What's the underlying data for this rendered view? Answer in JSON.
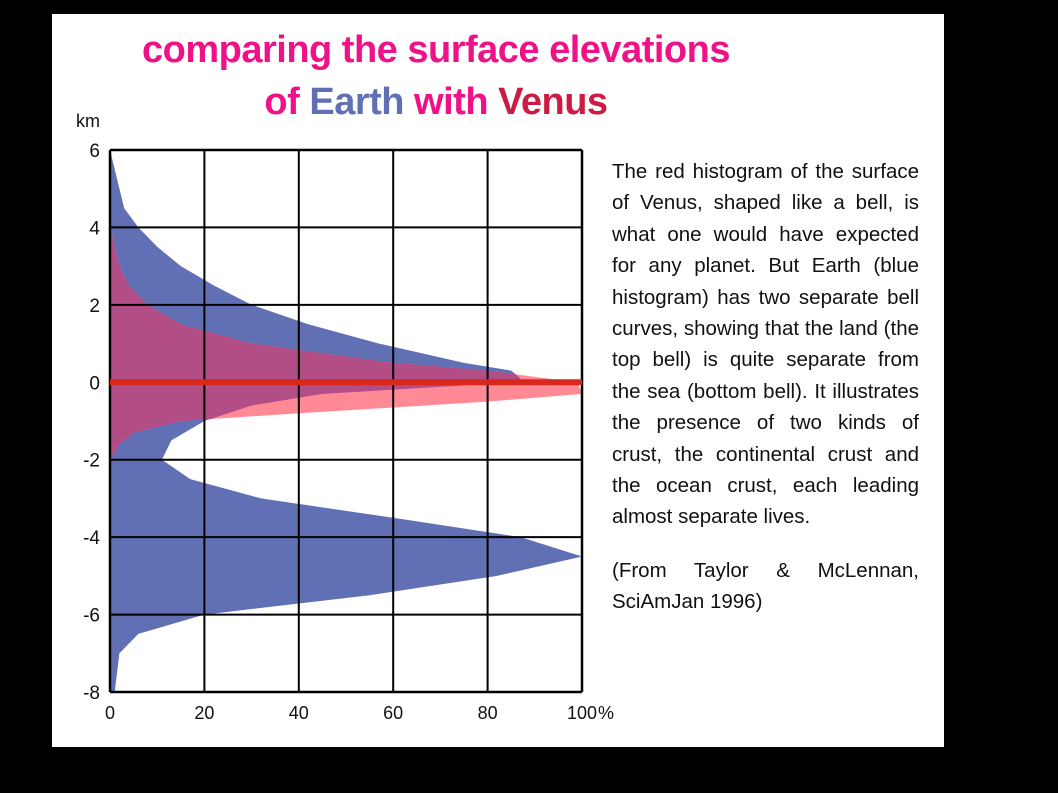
{
  "title": {
    "line1": "comparing the surface elevations",
    "line2_of": "of ",
    "line2_earth": "Earth",
    "line2_with": " with ",
    "line2_venus": "Venus"
  },
  "colors": {
    "title_pink": "#ee1188",
    "earth_blue": "#6170b4",
    "venus_red": "#ff8a96",
    "overlap": "#b24d86",
    "zero_line": "#d8281c",
    "background": "#000000"
  },
  "description": "The red histogram of the surface of Venus, shaped like a bell, is what one would have expected for any planet. But Earth (blue histogram) has two separate bell curves, showing that the land (the top bell) is quite separate from the sea (bottom bell). It illustrates the presence of two kinds of crust, the continental crust and the ocean crust, each leading almost separate lives.",
  "citation": "(From Taylor & McLennan, SciAmJan 1996)",
  "chart_data": {
    "type": "area",
    "orientation": "horizontal",
    "ylabel": "km",
    "xunit": "%",
    "xlim": [
      0,
      100
    ],
    "ylim": [
      -8,
      6
    ],
    "x_ticks": [
      "0",
      "20",
      "40",
      "60",
      "80",
      "100"
    ],
    "y_ticks": [
      "6",
      "4",
      "2",
      "0",
      "-2",
      "-4",
      "-6",
      "-8"
    ],
    "grid": true,
    "reference_line": 0,
    "series": [
      {
        "name": "Earth",
        "color": "#6170b4",
        "elevation_km": [
          6,
          5,
          4.5,
          4,
          3.5,
          3,
          2.5,
          2,
          1.5,
          1,
          0.5,
          0.3,
          0.1,
          0,
          -0.3,
          -0.6,
          -1,
          -1.5,
          -2,
          -2.5,
          -3,
          -3.5,
          -4,
          -4.5,
          -5,
          -5.5,
          -6,
          -6.5,
          -7,
          -8
        ],
        "percent": [
          0,
          2,
          3,
          6,
          10,
          15,
          22,
          30,
          42,
          57,
          75,
          85,
          87,
          86,
          45,
          30,
          20,
          13,
          11,
          17,
          32,
          60,
          87,
          100,
          82,
          55,
          20,
          6,
          2,
          1
        ]
      },
      {
        "name": "Venus",
        "color": "#ff8a96",
        "elevation_km": [
          4,
          3.5,
          3,
          2.5,
          2,
          1.5,
          1,
          0.5,
          0.3,
          0,
          -0.3,
          -0.5,
          -0.8,
          -1,
          -1.3,
          -1.6,
          -1.8,
          -2
        ],
        "percent": [
          0,
          1,
          2,
          4,
          8,
          15,
          30,
          60,
          80,
          99,
          100,
          80,
          40,
          15,
          5,
          2,
          1,
          0
        ]
      }
    ]
  }
}
